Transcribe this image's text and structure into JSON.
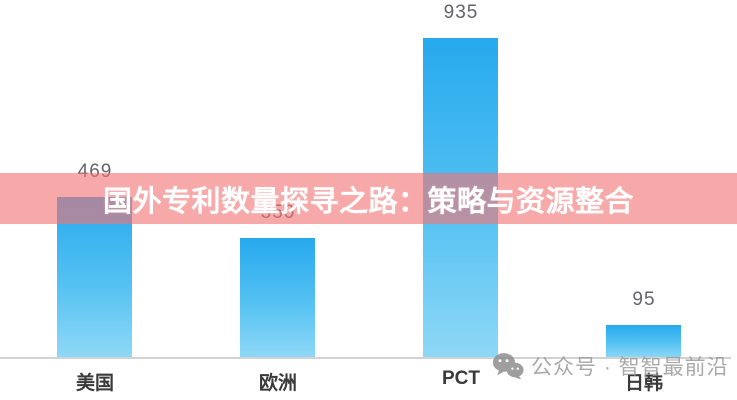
{
  "title": {
    "text": "国外专利数量探寻之路：策略与资源整合"
  },
  "watermark": {
    "icon": "wechat-icon",
    "text": "公众号 · 智智最前沿"
  },
  "chart_data": {
    "type": "bar",
    "categories": [
      "美国",
      "欧洲",
      "PCT",
      "日韩"
    ],
    "values": [
      469,
      350,
      935,
      95
    ],
    "value_labels": [
      "469",
      "350",
      "935",
      "95"
    ],
    "title": "",
    "xlabel": "",
    "ylabel": "",
    "ylim": [
      0,
      1000
    ],
    "grid": false,
    "legend": false,
    "bar_color_top": "#27a9ee",
    "bar_color_bottom": "#8fd8f7",
    "axis_color": "#d2d2d2",
    "value_label_color": "#63636b",
    "category_label_color": "#3a3a3a"
  },
  "colors": {
    "banner_overlay": "rgba(242,116,116,0.62)",
    "banner_text": "#ffffff",
    "watermark_gray": "#9b9b9b",
    "background": "#ffffff"
  }
}
